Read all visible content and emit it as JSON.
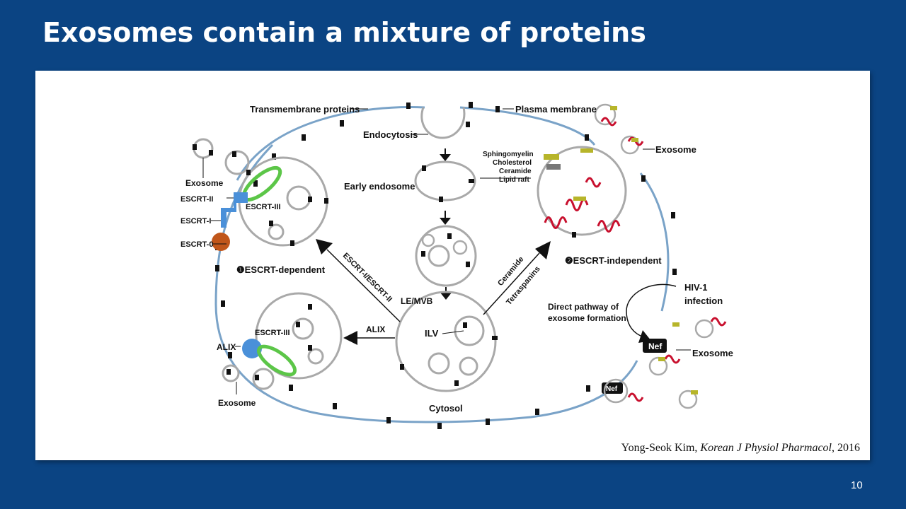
{
  "slide": {
    "title": "Exosomes contain a mixture of proteins",
    "page_number": "10",
    "citation": {
      "author": "Yong-Seok Kim, ",
      "journal": "Korean J Physiol Pharmacol",
      "year": ", 2016"
    }
  },
  "labels": {
    "transmembrane_proteins": "Transmembrane proteins",
    "plasma_membrane": "Plasma membrane",
    "endocytosis": "Endocytosis",
    "early_endosome": "Early endosome",
    "sphingomyelin": "Sphingomyelin",
    "cholesterol": "Cholesterol",
    "ceramide_lipid": "Ceramide",
    "lipid_raft": "Lipid raft",
    "exosome_topright": "Exosome",
    "exosome_topleft": "Exosome",
    "escrt_ii": "ESCRT-II",
    "escrt_i": "ESCRT-I",
    "escrt_0": "ESCRT-0",
    "escrt_iii_top": "ESCRT-III",
    "escrt_dependent": "❶ESCRT-dependent",
    "escrt_independent": "❷ESCRT-independent",
    "escrt_i_ii_arrow": "ESCRT-I/ESCRT-II",
    "ceramide_arrow": "Ceramide",
    "tetraspanins_arrow": "Tetraspanins",
    "le_mvb": "LE/MVB",
    "ilv": "ILV",
    "alix_arrow": "ALIX",
    "alix_left": "ALIX",
    "escrt_iii_bottom": "ESCRT-III",
    "exosome_bottomleft": "Exosome",
    "cytosol": "Cytosol",
    "hiv_infection_1": "HIV-1",
    "hiv_infection_2": "infection",
    "direct_pathway_1": "Direct pathway of",
    "direct_pathway_2": "exosome formation",
    "nef_1": "Nef",
    "nef_2": "Nef",
    "exosome_right": "Exosome"
  },
  "colors": {
    "background": "#0b4483",
    "membrane": "#7aa3c8",
    "vesicle": "#a9a9a9",
    "escrt_blue": "#4a90d9",
    "escrt_0_orange": "#c0561a",
    "escrt_iii_green": "#5cc648",
    "protein_red": "#c8102e",
    "lipid_yellow": "#b7b52a"
  }
}
